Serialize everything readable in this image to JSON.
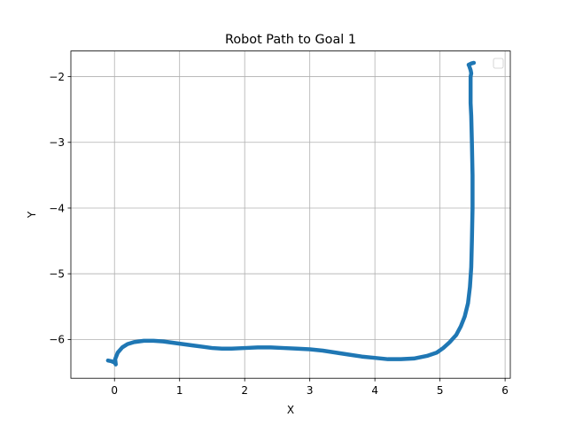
{
  "chart_data": {
    "type": "line",
    "title": "Robot Path to Goal 1",
    "xlabel": "X",
    "ylabel": "Y",
    "xlim": [
      -0.67,
      6.08
    ],
    "ylim": [
      -6.59,
      -1.61
    ],
    "xticks": [
      0,
      1,
      2,
      3,
      4,
      5,
      6
    ],
    "yticks": [
      -2,
      -3,
      -4,
      -5,
      -6
    ],
    "xtick_labels": [
      "0",
      "1",
      "2",
      "3",
      "4",
      "5",
      "6"
    ],
    "ytick_labels": [
      "−2",
      "−3",
      "−4",
      "−5",
      "−6"
    ],
    "grid": true,
    "legend": {
      "placement": "top-right",
      "entries": []
    },
    "series": [
      {
        "color": "#1f77b4",
        "x": [
          -0.1,
          -0.05,
          0.0,
          0.02,
          0.01,
          0.05,
          0.12,
          0.2,
          0.3,
          0.45,
          0.6,
          0.75,
          0.9,
          1.05,
          1.2,
          1.35,
          1.5,
          1.65,
          1.8,
          2.0,
          2.2,
          2.4,
          2.6,
          2.8,
          3.0,
          3.2,
          3.4,
          3.6,
          3.8,
          4.0,
          4.2,
          4.4,
          4.6,
          4.8,
          4.95,
          5.05,
          5.15,
          5.25,
          5.32,
          5.38,
          5.43,
          5.46,
          5.48,
          5.49,
          5.5,
          5.5,
          5.49,
          5.48,
          5.47,
          5.47,
          5.47,
          5.48,
          5.47,
          5.46,
          5.45,
          5.44,
          5.48,
          5.52
        ],
        "y": [
          -6.32,
          -6.33,
          -6.35,
          -6.38,
          -6.3,
          -6.2,
          -6.12,
          -6.07,
          -6.04,
          -6.02,
          -6.02,
          -6.03,
          -6.05,
          -6.07,
          -6.09,
          -6.11,
          -6.13,
          -6.14,
          -6.14,
          -6.13,
          -6.12,
          -6.12,
          -6.13,
          -6.14,
          -6.15,
          -6.17,
          -6.2,
          -6.23,
          -6.26,
          -6.28,
          -6.3,
          -6.3,
          -6.29,
          -6.25,
          -6.2,
          -6.13,
          -6.04,
          -5.93,
          -5.8,
          -5.65,
          -5.45,
          -5.2,
          -4.9,
          -4.5,
          -4.0,
          -3.5,
          -3.0,
          -2.6,
          -2.4,
          -2.2,
          -2.0,
          -1.95,
          -1.9,
          -1.87,
          -1.84,
          -1.82,
          -1.8,
          -1.79
        ]
      }
    ]
  }
}
